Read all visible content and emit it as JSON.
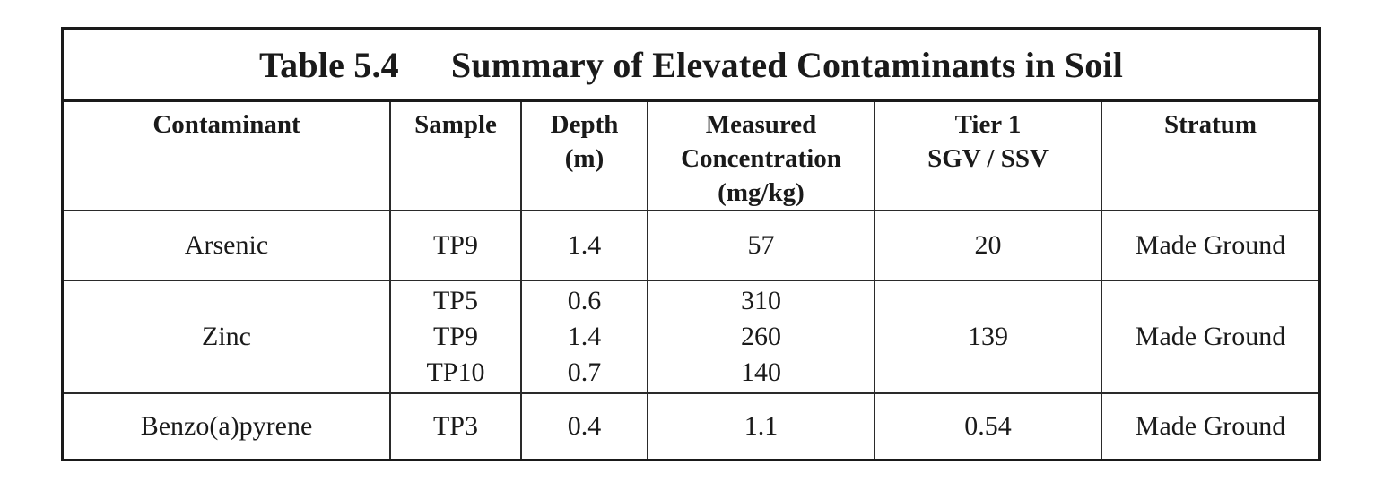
{
  "table": {
    "title_number": "Table 5.4",
    "title_text": "Summary of Elevated Contaminants in Soil",
    "headers": {
      "contaminant": "Contaminant",
      "sample": "Sample",
      "depth": [
        "Depth",
        "(m)"
      ],
      "concentration": [
        "Measured",
        "Concentration",
        "(mg/kg)"
      ],
      "tier": [
        "Tier 1",
        "SGV / SSV"
      ],
      "stratum": "Stratum"
    },
    "rows": [
      {
        "contaminant": "Arsenic",
        "samples": [
          "TP9"
        ],
        "depths": [
          "1.4"
        ],
        "concentrations": [
          "57"
        ],
        "tier": "20",
        "stratum": "Made Ground"
      },
      {
        "contaminant": "Zinc",
        "samples": [
          "TP5",
          "TP9",
          "TP10"
        ],
        "depths": [
          "0.6",
          "1.4",
          "0.7"
        ],
        "concentrations": [
          "310",
          "260",
          "140"
        ],
        "tier": "139",
        "stratum": "Made Ground"
      },
      {
        "contaminant": "Benzo(a)pyrene",
        "samples": [
          "TP3"
        ],
        "depths": [
          "0.4"
        ],
        "concentrations": [
          "1.1"
        ],
        "tier": "0.54",
        "stratum": "Made Ground"
      }
    ]
  }
}
